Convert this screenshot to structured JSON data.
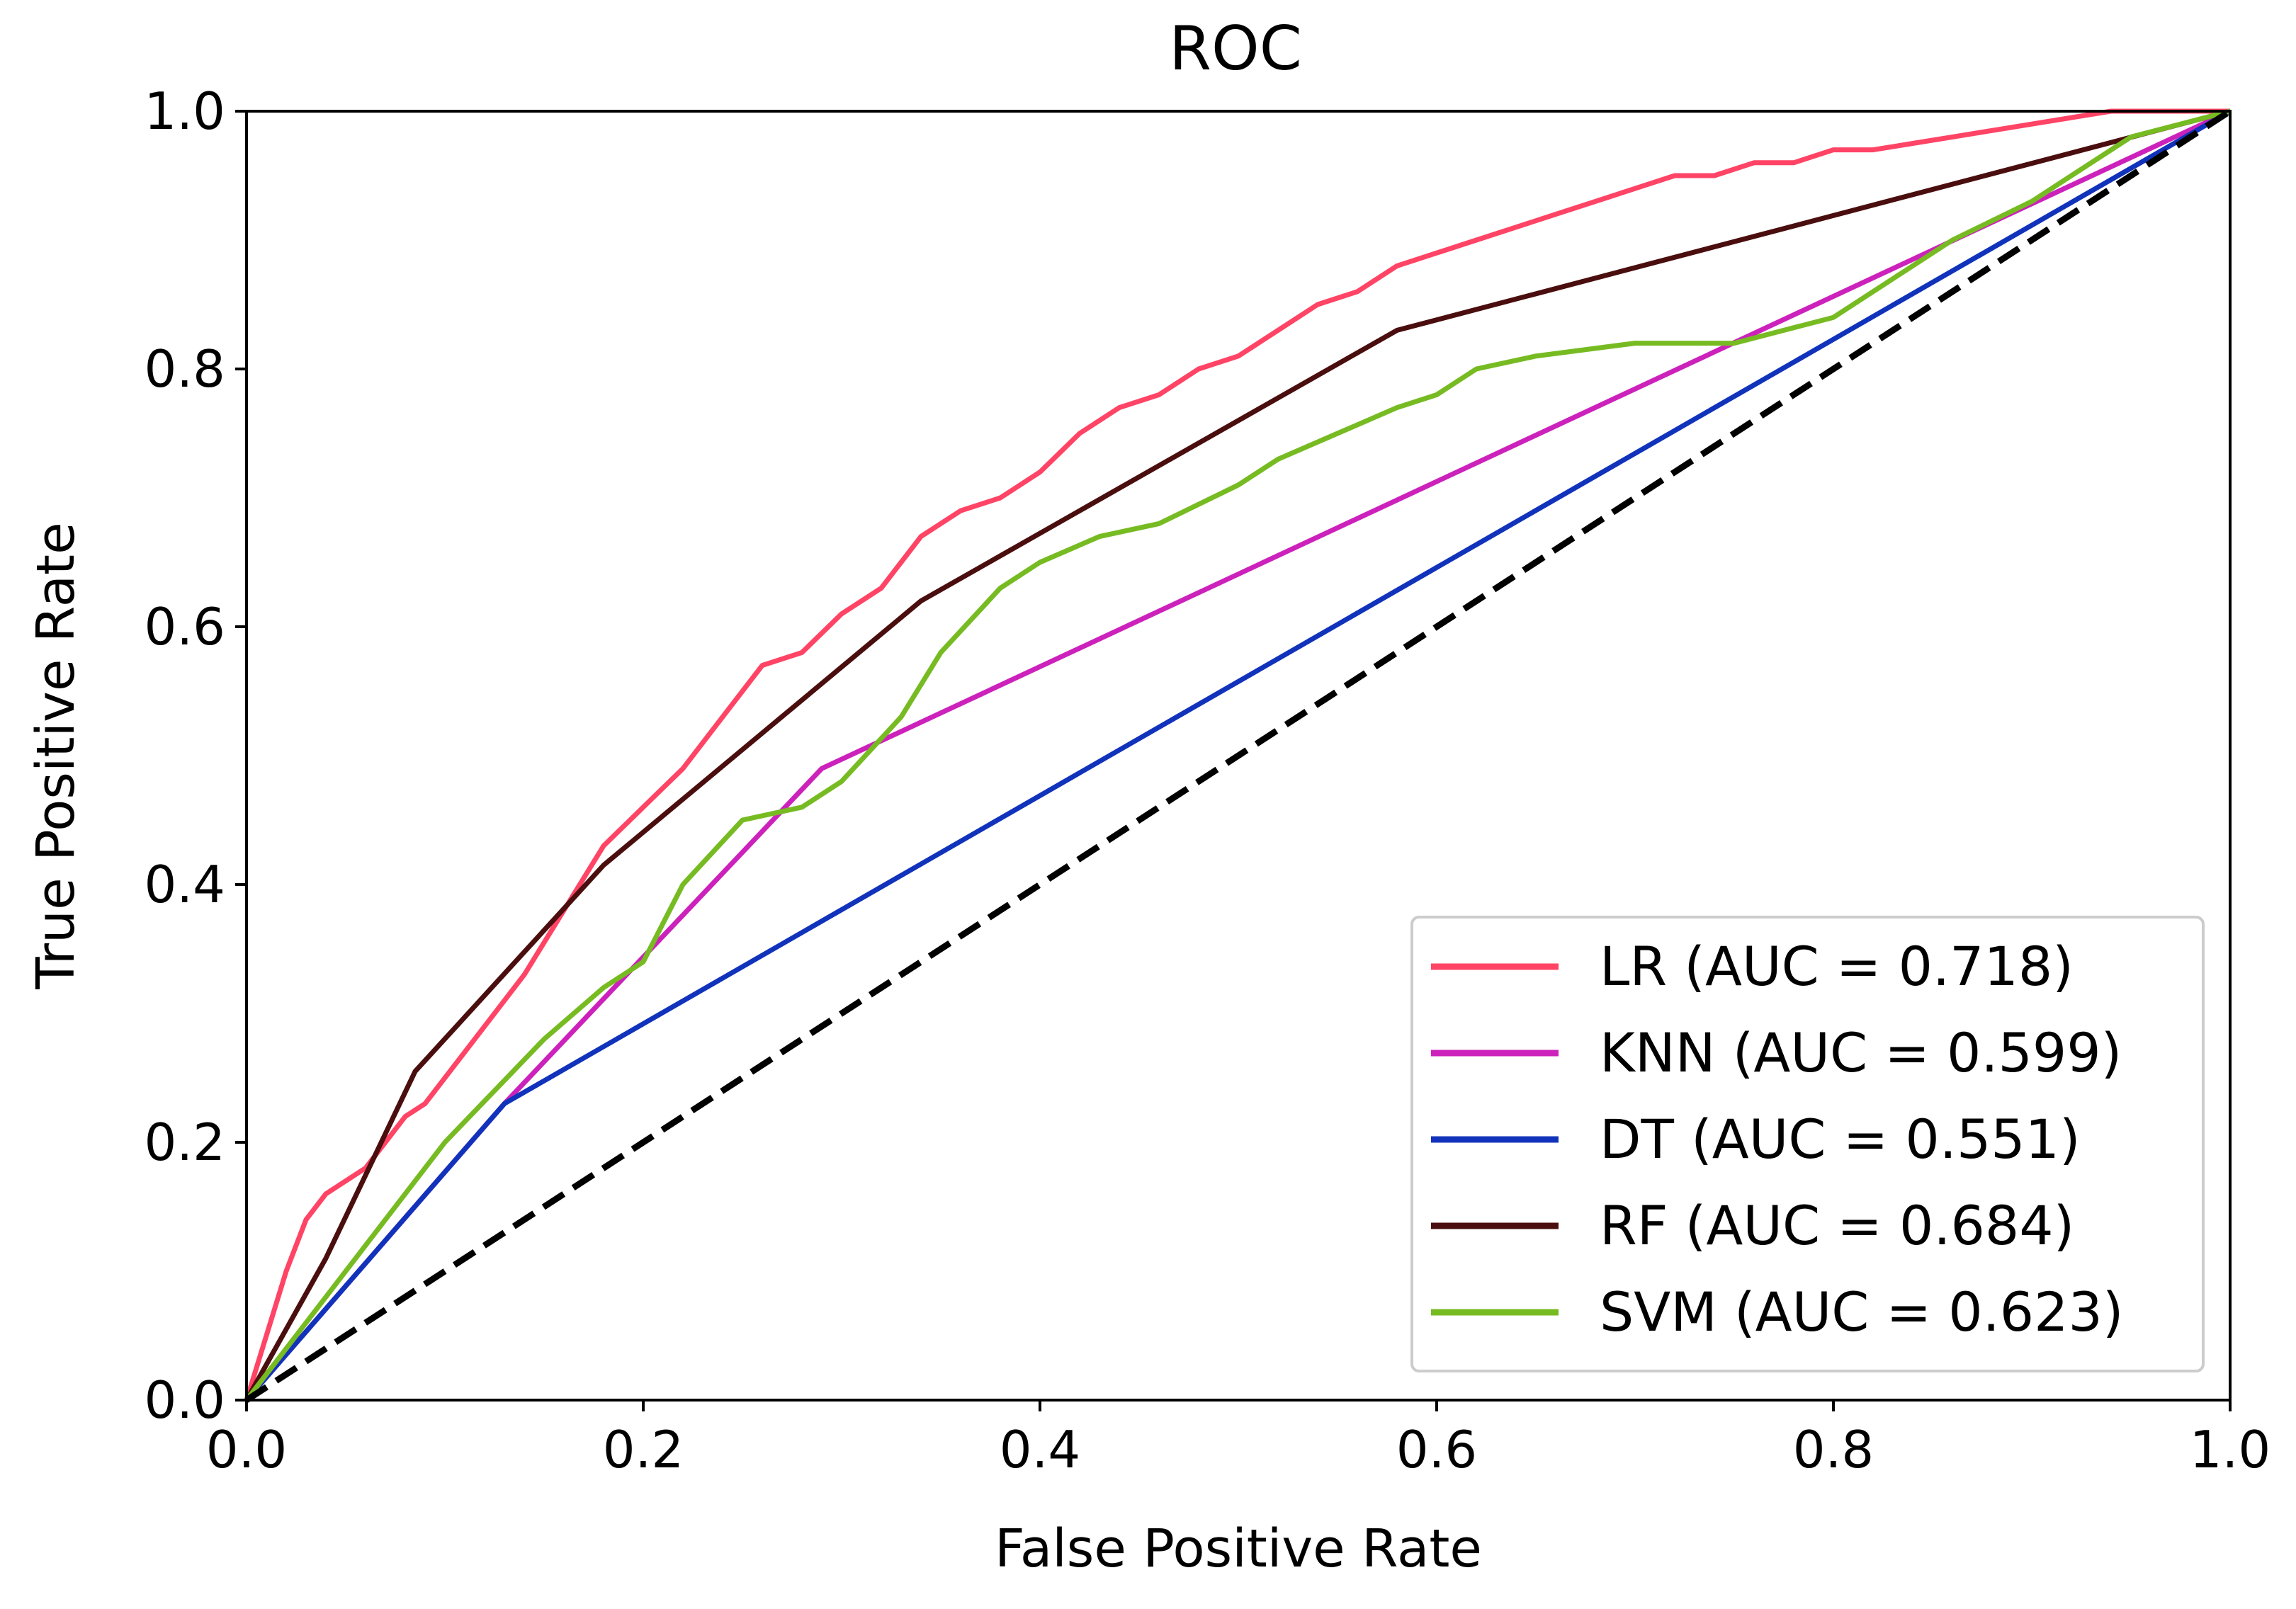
{
  "chart_data": {
    "type": "line",
    "title": "ROC",
    "xlabel": "False Positive Rate",
    "ylabel": "True Positive Rate",
    "xlim": [
      0.0,
      1.0
    ],
    "ylim": [
      0.0,
      1.0
    ],
    "xticks": [
      "0.0",
      "0.2",
      "0.4",
      "0.6",
      "0.8",
      "1.0"
    ],
    "yticks": [
      "0.0",
      "0.2",
      "0.4",
      "0.6",
      "0.8",
      "1.0"
    ],
    "grid": false,
    "legend_position": "lower-right",
    "series": [
      {
        "name": "LR (AUC = 0.718)",
        "color": "#ff4466",
        "x": [
          0,
          0.01,
          0.02,
          0.03,
          0.04,
          0.05,
          0.06,
          0.07,
          0.08,
          0.09,
          0.1,
          0.12,
          0.14,
          0.16,
          0.18,
          0.2,
          0.22,
          0.24,
          0.26,
          0.28,
          0.3,
          0.32,
          0.34,
          0.36,
          0.38,
          0.4,
          0.42,
          0.44,
          0.46,
          0.48,
          0.5,
          0.52,
          0.54,
          0.56,
          0.58,
          0.6,
          0.62,
          0.64,
          0.66,
          0.68,
          0.7,
          0.72,
          0.74,
          0.76,
          0.78,
          0.8,
          0.82,
          0.84,
          0.86,
          0.88,
          0.9,
          0.92,
          0.94,
          0.96,
          0.98,
          1.0
        ],
        "y": [
          0,
          0.05,
          0.1,
          0.14,
          0.16,
          0.17,
          0.18,
          0.2,
          0.22,
          0.23,
          0.25,
          0.29,
          0.33,
          0.38,
          0.43,
          0.46,
          0.49,
          0.53,
          0.57,
          0.58,
          0.61,
          0.63,
          0.67,
          0.69,
          0.7,
          0.72,
          0.75,
          0.77,
          0.78,
          0.8,
          0.81,
          0.83,
          0.85,
          0.86,
          0.88,
          0.89,
          0.9,
          0.91,
          0.92,
          0.93,
          0.94,
          0.95,
          0.95,
          0.96,
          0.96,
          0.97,
          0.97,
          0.975,
          0.98,
          0.985,
          0.99,
          0.995,
          1.0,
          1.0,
          1.0,
          1.0
        ]
      },
      {
        "name": "KNN (AUC = 0.599)",
        "color": "#cc22bb",
        "x": [
          0,
          0.13,
          0.29,
          1.0
        ],
        "y": [
          0,
          0.23,
          0.49,
          1.0
        ]
      },
      {
        "name": "DT (AUC = 0.551)",
        "color": "#1133bb",
        "x": [
          0,
          0.13,
          1.0
        ],
        "y": [
          0,
          0.23,
          1.0
        ]
      },
      {
        "name": "RF (AUC = 0.684)",
        "color": "#4a0e0e",
        "x": [
          0,
          0.04,
          0.085,
          0.18,
          0.34,
          0.58,
          1.0
        ],
        "y": [
          0,
          0.11,
          0.255,
          0.415,
          0.62,
          0.83,
          1.0
        ]
      },
      {
        "name": "SVM (AUC = 0.623)",
        "color": "#77bb22",
        "x": [
          0,
          0.05,
          0.1,
          0.15,
          0.18,
          0.2,
          0.22,
          0.25,
          0.28,
          0.3,
          0.33,
          0.35,
          0.38,
          0.4,
          0.43,
          0.46,
          0.5,
          0.52,
          0.55,
          0.58,
          0.6,
          0.62,
          0.65,
          0.7,
          0.75,
          0.8,
          0.83,
          0.86,
          0.9,
          0.95,
          1.0
        ],
        "y": [
          0,
          0.1,
          0.2,
          0.28,
          0.32,
          0.34,
          0.4,
          0.45,
          0.46,
          0.48,
          0.53,
          0.58,
          0.63,
          0.65,
          0.67,
          0.68,
          0.71,
          0.73,
          0.75,
          0.77,
          0.78,
          0.8,
          0.81,
          0.82,
          0.82,
          0.84,
          0.87,
          0.9,
          0.93,
          0.98,
          1.0
        ]
      },
      {
        "name": "chance",
        "color": "#000000",
        "dashed": true,
        "in_legend": false,
        "x": [
          0,
          1.0
        ],
        "y": [
          0,
          1.0
        ]
      }
    ]
  }
}
